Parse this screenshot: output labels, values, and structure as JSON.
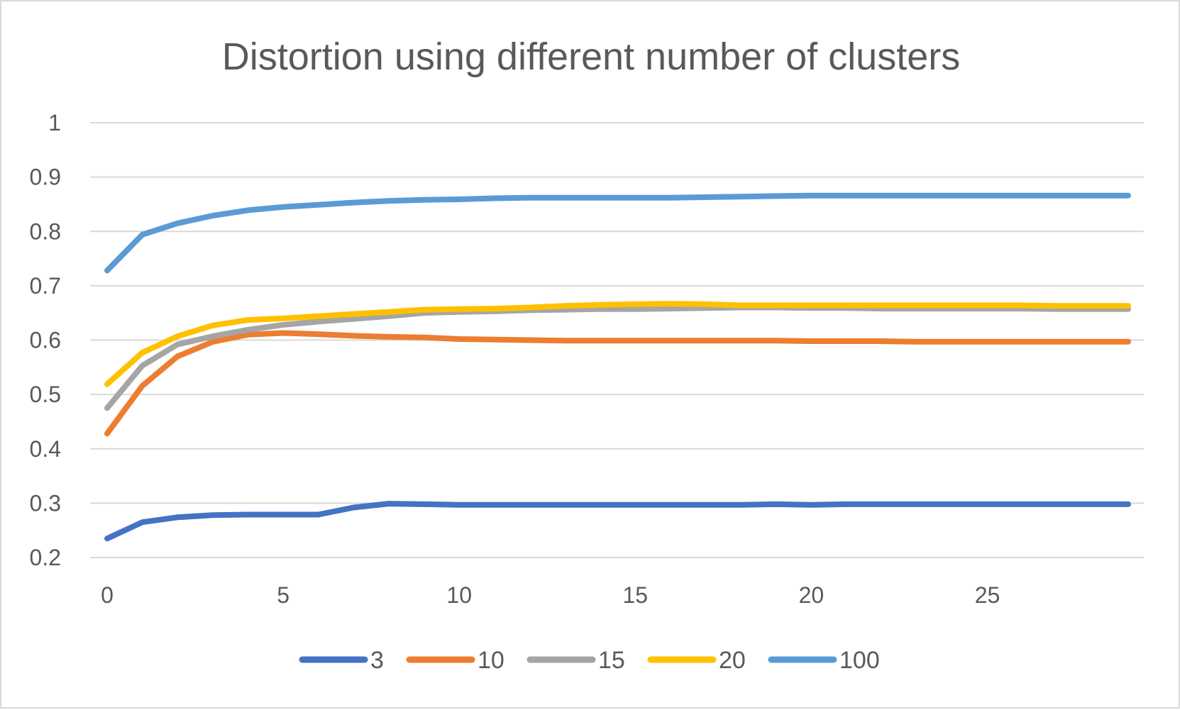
{
  "chart_data": {
    "type": "line",
    "title": "Distortion using different number of clusters",
    "xlabel": "",
    "ylabel": "",
    "x": [
      0,
      1,
      2,
      3,
      4,
      5,
      6,
      7,
      8,
      9,
      10,
      11,
      12,
      13,
      14,
      15,
      16,
      17,
      18,
      19,
      20,
      21,
      22,
      23,
      24,
      25,
      26,
      27,
      28,
      29
    ],
    "xlim": [
      0,
      29
    ],
    "ylim": [
      0.2,
      1.0
    ],
    "x_ticks": [
      0,
      5,
      10,
      15,
      20,
      25
    ],
    "x_tick_labels": [
      "0",
      "5",
      "10",
      "15",
      "20",
      "25"
    ],
    "y_ticks": [
      0.2,
      0.3,
      0.4,
      0.5,
      0.6,
      0.7,
      0.8,
      0.9,
      1.0
    ],
    "y_tick_labels": [
      "0.2",
      "0.3",
      "0.4",
      "0.5",
      "0.6",
      "0.7",
      "0.8",
      "0.9",
      "1"
    ],
    "grid": true,
    "legend_position": "bottom",
    "series": [
      {
        "name": "3",
        "color": "#4472C4",
        "values": [
          0.235,
          0.265,
          0.274,
          0.278,
          0.279,
          0.279,
          0.279,
          0.292,
          0.299,
          0.298,
          0.297,
          0.297,
          0.297,
          0.297,
          0.297,
          0.297,
          0.297,
          0.297,
          0.297,
          0.298,
          0.297,
          0.298,
          0.298,
          0.298,
          0.298,
          0.298,
          0.298,
          0.298,
          0.298,
          0.298
        ]
      },
      {
        "name": "10",
        "color": "#ED7D31",
        "values": [
          0.428,
          0.516,
          0.57,
          0.597,
          0.61,
          0.613,
          0.611,
          0.608,
          0.606,
          0.605,
          0.602,
          0.601,
          0.6,
          0.599,
          0.599,
          0.599,
          0.599,
          0.599,
          0.599,
          0.599,
          0.598,
          0.598,
          0.598,
          0.597,
          0.597,
          0.597,
          0.597,
          0.597,
          0.597,
          0.597
        ]
      },
      {
        "name": "15",
        "color": "#A5A5A5",
        "values": [
          0.475,
          0.553,
          0.592,
          0.607,
          0.619,
          0.628,
          0.634,
          0.639,
          0.644,
          0.65,
          0.652,
          0.653,
          0.655,
          0.656,
          0.657,
          0.657,
          0.658,
          0.659,
          0.66,
          0.66,
          0.659,
          0.659,
          0.658,
          0.658,
          0.658,
          0.658,
          0.658,
          0.657,
          0.657,
          0.657
        ]
      },
      {
        "name": "20",
        "color": "#FFC000",
        "values": [
          0.519,
          0.577,
          0.607,
          0.627,
          0.637,
          0.64,
          0.644,
          0.648,
          0.652,
          0.656,
          0.657,
          0.658,
          0.66,
          0.663,
          0.665,
          0.666,
          0.667,
          0.666,
          0.664,
          0.664,
          0.664,
          0.664,
          0.664,
          0.664,
          0.664,
          0.664,
          0.664,
          0.663,
          0.663,
          0.663
        ]
      },
      {
        "name": "100",
        "color": "#5B9BD5",
        "values": [
          0.728,
          0.794,
          0.815,
          0.829,
          0.839,
          0.845,
          0.849,
          0.853,
          0.856,
          0.858,
          0.859,
          0.861,
          0.862,
          0.862,
          0.862,
          0.862,
          0.862,
          0.863,
          0.864,
          0.865,
          0.866,
          0.866,
          0.866,
          0.866,
          0.866,
          0.866,
          0.866,
          0.866,
          0.866,
          0.866
        ]
      }
    ]
  }
}
